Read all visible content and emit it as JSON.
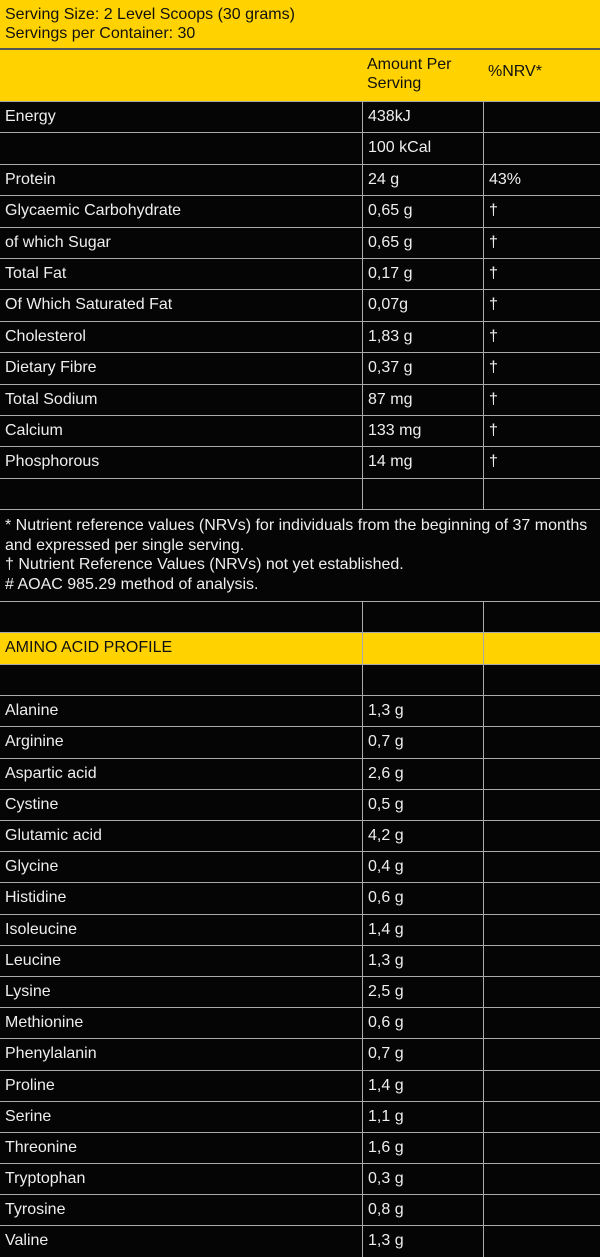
{
  "serving": {
    "size": "Serving Size: 2 Level Scoops (30 grams)",
    "per_container": "Servings per Container: 30"
  },
  "header": {
    "amount": "Amount Per Serving",
    "nrv": "%NRV*"
  },
  "nutrients": [
    {
      "name": "Energy",
      "amount": "438kJ",
      "nrv": ""
    },
    {
      "name": "",
      "amount": "100 kCal",
      "nrv": ""
    },
    {
      "name": "Protein",
      "amount": "24 g",
      "nrv": "43%"
    },
    {
      "name": "Glycaemic Carbohydrate",
      "amount": "0,65 g",
      "nrv": "†"
    },
    {
      "name": "of which Sugar",
      "amount": "0,65 g",
      "nrv": "†"
    },
    {
      "name": "Total Fat",
      "amount": "0,17 g",
      "nrv": "†"
    },
    {
      "name": "Of Which Saturated Fat",
      "amount": "0,07g",
      "nrv": "†"
    },
    {
      "name": "Cholesterol",
      "amount": "1,83 g",
      "nrv": "†"
    },
    {
      "name": "Dietary Fibre",
      "amount": "0,37 g",
      "nrv": "†"
    },
    {
      "name": "Total Sodium",
      "amount": "87 mg",
      "nrv": "†"
    },
    {
      "name": "Calcium",
      "amount": "133 mg",
      "nrv": "†"
    },
    {
      "name": "Phosphorous",
      "amount": "14 mg",
      "nrv": "†"
    },
    {
      "name": "",
      "amount": "",
      "nrv": ""
    }
  ],
  "footnotes": [
    "* Nutrient reference values (NRVs) for individuals from the beginning of 37 months and expressed per single serving.",
    "† Nutrient Reference Values (NRVs) not yet established.",
    "# AOAC 985.29 method of analysis."
  ],
  "amino": {
    "title": "AMINO ACID PROFILE",
    "rows": [
      {
        "name": "Alanine",
        "amount": "1,3 g"
      },
      {
        "name": "Arginine",
        "amount": "0,7 g"
      },
      {
        "name": "Aspartic acid",
        "amount": "2,6 g"
      },
      {
        "name": "Cystine",
        "amount": "0,5 g"
      },
      {
        "name": "Glutamic acid",
        "amount": "4,2 g"
      },
      {
        "name": "Glycine",
        "amount": "0,4 g"
      },
      {
        "name": "Histidine",
        "amount": "0,6 g"
      },
      {
        "name": "Isoleucine",
        "amount": "1,4 g"
      },
      {
        "name": "Leucine",
        "amount": "1,3 g"
      },
      {
        "name": "Lysine",
        "amount": "2,5 g"
      },
      {
        "name": "Methionine",
        "amount": "0,6 g"
      },
      {
        "name": "Phenylalanin",
        "amount": "0,7 g"
      },
      {
        "name": "Proline",
        "amount": "1,4 g"
      },
      {
        "name": "Serine",
        "amount": "1,1 g"
      },
      {
        "name": "Threonine",
        "amount": "1,6 g"
      },
      {
        "name": "Tryptophan",
        "amount": "0,3 g"
      },
      {
        "name": "Tyrosine",
        "amount": "0,8 g"
      },
      {
        "name": "Valine",
        "amount": "1,3 g"
      }
    ]
  },
  "colors": {
    "accent": "#FFD200",
    "background": "#050505",
    "grid": "#aaaaaa"
  }
}
